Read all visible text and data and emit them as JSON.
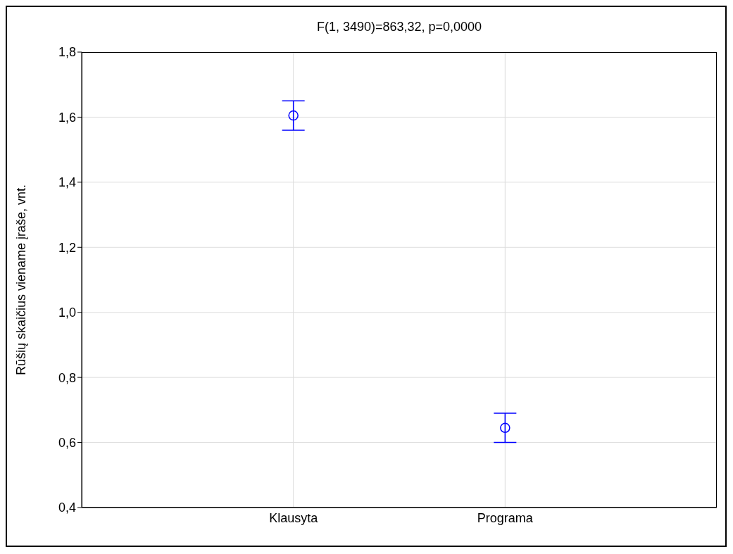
{
  "chart_data": {
    "type": "scatter",
    "title": "F(1, 3490)=863,32, p=0,0000",
    "ylabel": "Rūšių skaičius viename įraše, vnt.",
    "categories": [
      "Klausyta",
      "Programa"
    ],
    "series": [
      {
        "color": "#0000ff",
        "values": [
          1.605,
          0.645
        ],
        "errors": [
          0.045,
          0.045
        ]
      }
    ],
    "ylim": [
      0.4,
      1.8
    ],
    "yticks": [
      {
        "value": 0.4,
        "label": "0,4"
      },
      {
        "value": 0.6,
        "label": "0,6"
      },
      {
        "value": 0.8,
        "label": "0,8"
      },
      {
        "value": 1.0,
        "label": "1,0"
      },
      {
        "value": 1.2,
        "label": "1,2"
      },
      {
        "value": 1.4,
        "label": "1,4"
      },
      {
        "value": 1.6,
        "label": "1,6"
      },
      {
        "value": 1.8,
        "label": "1,8"
      }
    ],
    "grid": true,
    "marker": "circle",
    "legend": false
  }
}
